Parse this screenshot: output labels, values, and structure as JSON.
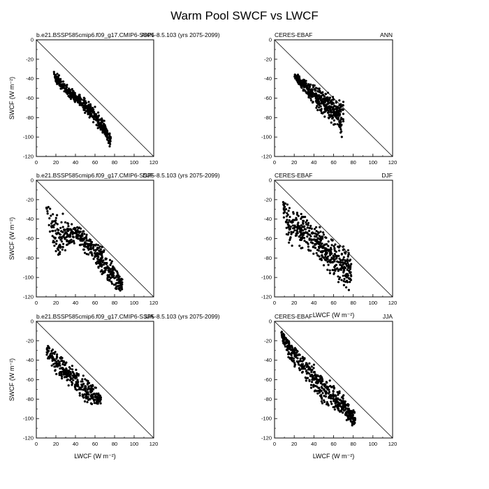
{
  "title": "Warm Pool SWCF vs LWCF",
  "colors": {
    "points": "#000000",
    "axes": "#000000",
    "background": "#ffffff"
  },
  "chart_data": [
    {
      "type": "scatter",
      "left_label": "b.e21.BSSP585cmip6.f09_g17.CMIP6-SSP5-8.5.103 (yrs 2075-2099)",
      "right_label": "ANN",
      "xlabel": "",
      "ylabel": "SWCF (W m⁻²)",
      "xlim": [
        0,
        120
      ],
      "ylim": [
        -120,
        0
      ],
      "xticks": [
        0,
        20,
        40,
        60,
        80,
        100,
        120
      ],
      "yticks": [
        0,
        -20,
        -40,
        -60,
        -80,
        -100,
        -120
      ],
      "reference_line": [
        [
          0,
          0
        ],
        [
          120,
          -120
        ]
      ],
      "grid": false,
      "cloud": {
        "seed": 11,
        "n": 420,
        "x": [
          18,
          76
        ],
        "band": [
          [
            18,
            -30,
            -42
          ],
          [
            30,
            -44,
            -58
          ],
          [
            45,
            -55,
            -70
          ],
          [
            60,
            -68,
            -88
          ],
          [
            70,
            -84,
            -100
          ],
          [
            76,
            -96,
            -112
          ]
        ]
      }
    },
    {
      "type": "scatter",
      "left_label": "CERES-EBAF",
      "right_label": "ANN",
      "xlabel": "",
      "ylabel": "",
      "xlim": [
        0,
        120
      ],
      "ylim": [
        -120,
        0
      ],
      "xticks": [
        0,
        20,
        40,
        60,
        80,
        100,
        120
      ],
      "yticks": [
        0,
        -20,
        -40,
        -60,
        -80,
        -100,
        -120
      ],
      "reference_line": [
        [
          0,
          0
        ],
        [
          120,
          -120
        ]
      ],
      "grid": false,
      "cloud": {
        "seed": 23,
        "n": 420,
        "x": [
          20,
          70
        ],
        "band": [
          [
            20,
            -33,
            -40
          ],
          [
            32,
            -40,
            -58
          ],
          [
            45,
            -48,
            -75
          ],
          [
            58,
            -55,
            -88
          ],
          [
            65,
            -58,
            -96
          ],
          [
            70,
            -62,
            -104
          ]
        ]
      }
    },
    {
      "type": "scatter",
      "left_label": "b.e21.BSSP585cmip6.f09_g17.CMIP6-SSP5-8.5.103 (yrs 2075-2099)",
      "right_label": "DJF",
      "xlabel": "",
      "ylabel": "SWCF (W m⁻²)",
      "xlim": [
        0,
        120
      ],
      "ylim": [
        -120,
        0
      ],
      "xticks": [
        0,
        20,
        40,
        60,
        80,
        100,
        120
      ],
      "yticks": [
        0,
        -20,
        -40,
        -60,
        -80,
        -100,
        -120
      ],
      "reference_line": [
        [
          0,
          0
        ],
        [
          120,
          -120
        ]
      ],
      "grid": false,
      "cloud": {
        "seed": 37,
        "n": 460,
        "x": [
          10,
          88
        ],
        "band": [
          [
            10,
            -22,
            -28
          ],
          [
            16,
            -24,
            -75
          ],
          [
            25,
            -32,
            -82
          ],
          [
            40,
            -44,
            -66
          ],
          [
            55,
            -56,
            -82
          ],
          [
            70,
            -70,
            -104
          ],
          [
            88,
            -100,
            -118
          ]
        ]
      }
    },
    {
      "type": "scatter",
      "left_label": "CERES-EBAF",
      "right_label": "DJF",
      "xlabel": "LWCF (W m⁻²)",
      "ylabel": "",
      "xlim": [
        0,
        120
      ],
      "ylim": [
        -120,
        0
      ],
      "xticks": [
        0,
        20,
        40,
        60,
        80,
        100,
        120
      ],
      "yticks": [
        0,
        -20,
        -40,
        -60,
        -80,
        -100,
        -120
      ],
      "reference_line": [
        [
          0,
          0
        ],
        [
          120,
          -120
        ]
      ],
      "grid": false,
      "cloud": {
        "seed": 41,
        "n": 460,
        "x": [
          8,
          78
        ],
        "band": [
          [
            8,
            -20,
            -28
          ],
          [
            14,
            -22,
            -72
          ],
          [
            25,
            -30,
            -70
          ],
          [
            40,
            -42,
            -78
          ],
          [
            55,
            -55,
            -95
          ],
          [
            68,
            -62,
            -112
          ],
          [
            78,
            -70,
            -118
          ]
        ]
      }
    },
    {
      "type": "scatter",
      "left_label": "b.e21.BSSP585cmip6.f09_g17.CMIP6-SSP5-8.5.103 (yrs 2075-2099)",
      "right_label": "JJA",
      "xlabel": "LWCF (W m⁻²)",
      "ylabel": "SWCF (W m⁻²)",
      "xlim": [
        0,
        120
      ],
      "ylim": [
        -120,
        0
      ],
      "xticks": [
        0,
        20,
        40,
        60,
        80,
        100,
        120
      ],
      "yticks": [
        0,
        -20,
        -40,
        -60,
        -80,
        -100,
        -120
      ],
      "reference_line": [
        [
          0,
          0
        ],
        [
          120,
          -120
        ]
      ],
      "grid": false,
      "cloud": {
        "seed": 53,
        "n": 320,
        "x": [
          10,
          66
        ],
        "band": [
          [
            10,
            -20,
            -40
          ],
          [
            20,
            -30,
            -55
          ],
          [
            35,
            -42,
            -70
          ],
          [
            50,
            -56,
            -86
          ],
          [
            60,
            -64,
            -90
          ],
          [
            66,
            -72,
            -86
          ]
        ]
      }
    },
    {
      "type": "scatter",
      "left_label": "CERES-EBAF",
      "right_label": "JJA",
      "xlabel": "LWCF (W m⁻²)",
      "ylabel": "",
      "xlim": [
        0,
        120
      ],
      "ylim": [
        -120,
        0
      ],
      "xticks": [
        0,
        20,
        40,
        60,
        80,
        100,
        120
      ],
      "yticks": [
        0,
        -20,
        -40,
        -60,
        -80,
        -100,
        -120
      ],
      "reference_line": [
        [
          0,
          0
        ],
        [
          120,
          -120
        ]
      ],
      "grid": false,
      "cloud": {
        "seed": 67,
        "n": 480,
        "x": [
          7,
          82
        ],
        "band": [
          [
            7,
            -10,
            -18
          ],
          [
            15,
            -18,
            -40
          ],
          [
            30,
            -35,
            -60
          ],
          [
            45,
            -48,
            -82
          ],
          [
            60,
            -62,
            -96
          ],
          [
            72,
            -78,
            -104
          ],
          [
            82,
            -92,
            -110
          ]
        ]
      }
    }
  ]
}
